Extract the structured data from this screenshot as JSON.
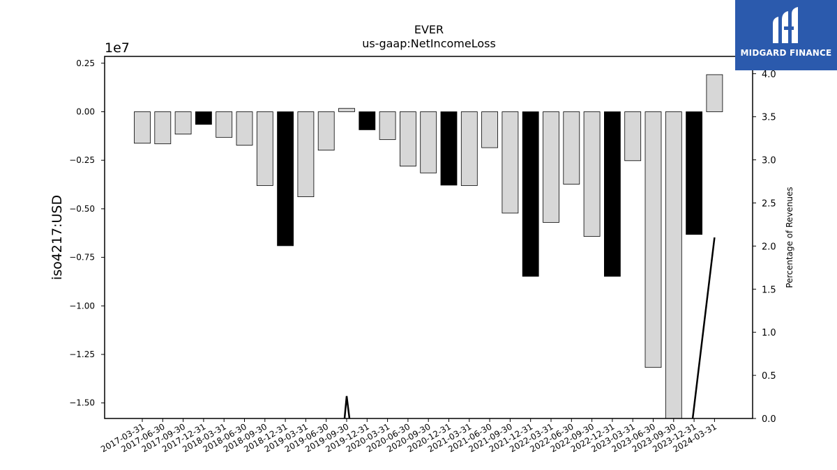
{
  "brand": {
    "name": "MIDGARD FINANCE",
    "color": "#2b5aad",
    "icon": "midgard-logo-icon"
  },
  "chart_data": {
    "type": "bar",
    "title": "EVER",
    "subtitle": "us-gaap:NetIncomeLoss",
    "ylabel": "iso4217:USD",
    "y_offset_label": "1e7",
    "y2label": "Percentage of Revenues",
    "ylim": [
      -15800000,
      2850000
    ],
    "y2lim": [
      0,
      4.2
    ],
    "yticks": [
      0.25,
      0.0,
      -0.25,
      -0.5,
      -0.75,
      -1.0,
      -1.25,
      -1.5
    ],
    "y2ticks": [
      0.0,
      0.5,
      1.0,
      1.5,
      2.0,
      2.5,
      3.0,
      3.5,
      4.0
    ],
    "categories": [
      "2017-03-31",
      "2017-06-30",
      "2017-09-30",
      "2017-12-31",
      "2018-03-31",
      "2018-06-30",
      "2018-09-30",
      "2018-12-31",
      "2019-03-31",
      "2019-06-30",
      "2019-09-30",
      "2019-12-31",
      "2020-03-31",
      "2020-06-30",
      "2020-09-30",
      "2020-12-31",
      "2021-03-31",
      "2021-06-30",
      "2021-09-30",
      "2021-12-31",
      "2022-03-31",
      "2022-06-30",
      "2022-09-30",
      "2022-12-31",
      "2023-03-31",
      "2023-06-30",
      "2023-09-30",
      "2023-12-31",
      "2024-03-31"
    ],
    "values": [
      -1620000,
      -1650000,
      -1150000,
      -650000,
      -1320000,
      -1720000,
      -3800000,
      -6900000,
      -4380000,
      -1980000,
      170000,
      -930000,
      -1430000,
      -2800000,
      -3150000,
      -3780000,
      -3800000,
      -1850000,
      -5220000,
      -8480000,
      -5700000,
      -3730000,
      -6420000,
      -8480000,
      -2520000,
      -13170000,
      -15800000,
      -6320000,
      1910000
    ],
    "highlight": [
      false,
      false,
      false,
      true,
      false,
      false,
      false,
      true,
      false,
      false,
      false,
      true,
      false,
      false,
      false,
      true,
      false,
      false,
      false,
      true,
      false,
      false,
      false,
      true,
      false,
      false,
      false,
      true,
      false
    ],
    "pct_revenues": [
      null,
      null,
      null,
      null,
      null,
      null,
      null,
      null,
      null,
      null,
      0.26,
      null,
      null,
      null,
      null,
      null,
      null,
      null,
      null,
      null,
      null,
      null,
      null,
      null,
      null,
      null,
      null,
      0,
      2.1
    ],
    "colors": {
      "bar": "#d7d7d7",
      "highlight_bar": "#000000",
      "edge": "#000000",
      "line": "#000000"
    },
    "grid": false,
    "legend": "none"
  }
}
